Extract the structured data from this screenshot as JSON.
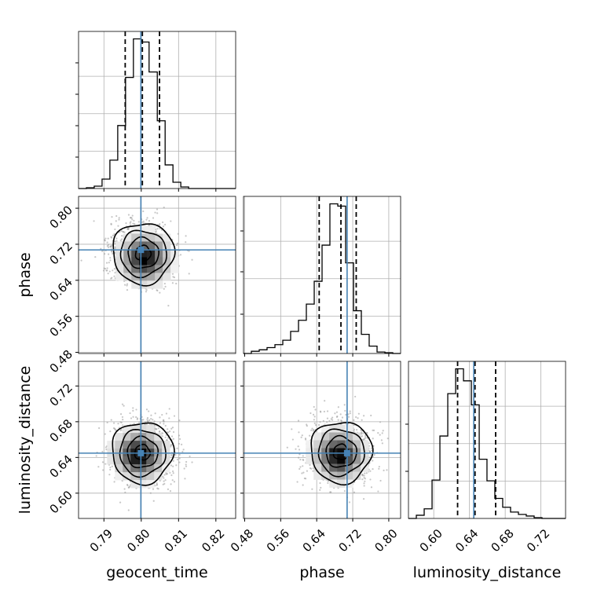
{
  "chart_data": {
    "type": "corner",
    "parameters": [
      "geocent_time",
      "phase",
      "luminosity_distance"
    ],
    "axis_labels": {
      "x": [
        "geocent_time",
        "phase",
        "luminosity_distance"
      ],
      "y": [
        "phase",
        "luminosity_distance"
      ]
    },
    "ranges": {
      "geocent_time": [
        0.7832,
        0.8253
      ],
      "phase": [
        0.4775,
        0.8263
      ],
      "luminosity_distance": [
        0.5717,
        0.7476
      ]
    },
    "ticks": {
      "geocent_time": [
        0.79,
        0.8,
        0.81,
        0.82
      ],
      "phase": [
        0.48,
        0.56,
        0.64,
        0.72,
        0.8
      ],
      "luminosity_distance": [
        0.6,
        0.64,
        0.68,
        0.72
      ]
    },
    "tick_labels": {
      "geocent_time": [
        "0.79",
        "0.80",
        "0.81",
        "0.82"
      ],
      "phase": [
        "0.48",
        "0.56",
        "0.64",
        "0.72",
        "0.80"
      ],
      "luminosity_distance": [
        "0.60",
        "0.64",
        "0.68",
        "0.72"
      ]
    },
    "truths": {
      "geocent_time": 0.7999,
      "phase": 0.7075,
      "luminosity_distance": 0.6448
    },
    "quantiles": {
      "geocent_time": [
        0.7957,
        0.8003,
        0.8049
      ],
      "phase": [
        0.6455,
        0.6938,
        0.7277
      ],
      "luminosity_distance": [
        0.6267,
        0.6462,
        0.6693
      ]
    },
    "histograms": {
      "geocent_time": {
        "bin_edges": [
          0.7832,
          0.7853,
          0.7874,
          0.7895,
          0.7916,
          0.7937,
          0.7958,
          0.7979,
          0.8,
          0.8021,
          0.8043,
          0.8064,
          0.8085,
          0.8106,
          0.8127,
          0.8148,
          0.8169,
          0.819,
          0.8211,
          0.8232,
          0.8253
        ],
        "counts": [
          0,
          1,
          3,
          12,
          36,
          80,
          141,
          190,
          186,
          148,
          86,
          30,
          8,
          2,
          0,
          0,
          0,
          0,
          0,
          0
        ]
      },
      "phase": {
        "bin_edges": [
          0.4775,
          0.4949,
          0.5124,
          0.5298,
          0.5473,
          0.5647,
          0.5821,
          0.5996,
          0.617,
          0.6345,
          0.6519,
          0.6693,
          0.6868,
          0.7042,
          0.7217,
          0.7391,
          0.7565,
          0.774,
          0.7914,
          0.8089,
          0.8263
        ],
        "counts": [
          0,
          3,
          5,
          8,
          12,
          18,
          30,
          45,
          67,
          98,
          147,
          203,
          200,
          123,
          58,
          26,
          10,
          2,
          1,
          0
        ]
      },
      "luminosity_distance": {
        "bin_edges": [
          0.5717,
          0.5805,
          0.5893,
          0.5981,
          0.6069,
          0.6157,
          0.6245,
          0.6333,
          0.6421,
          0.6509,
          0.6596,
          0.6684,
          0.6772,
          0.686,
          0.6948,
          0.7036,
          0.7124,
          0.7212,
          0.73,
          0.7388,
          0.7476
        ],
        "counts": [
          0,
          4,
          12,
          48,
          103,
          156,
          187,
          172,
          142,
          74,
          47,
          25,
          14,
          8,
          5,
          3,
          1,
          0,
          0,
          0
        ]
      }
    },
    "pairs": [
      {
        "x": "geocent_time",
        "y": "phase",
        "x_center": 0.8005,
        "y_center": 0.7,
        "x_sigma": 0.0041,
        "y_sigma": 0.0339,
        "density_peak": [
          0.801,
          0.688
        ]
      },
      {
        "x": "geocent_time",
        "y": "luminosity_distance",
        "x_center": 0.8003,
        "y_center": 0.6455,
        "x_sigma": 0.0041,
        "y_sigma": 0.0172,
        "density_peak": [
          0.7995,
          0.643
        ]
      },
      {
        "x": "phase",
        "y": "luminosity_distance",
        "x_center": 0.694,
        "y_center": 0.646,
        "x_sigma": 0.0339,
        "y_sigma": 0.0172,
        "density_peak": [
          0.69,
          0.642
        ]
      }
    ],
    "grid": true,
    "truth_color": "#4682b4",
    "line_color": "#000000",
    "scatter_color": "#999999"
  }
}
